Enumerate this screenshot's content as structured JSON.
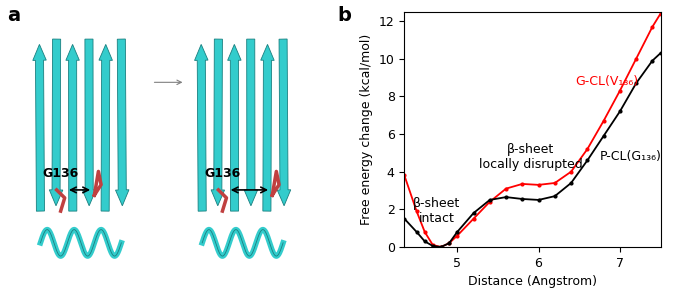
{
  "panel_labels": [
    "a",
    "b"
  ],
  "structure_panel": {
    "residue_labels": [
      "G136",
      "G136"
    ]
  },
  "chart_data": {
    "type": "line",
    "xlabel": "Distance (Angstrom)",
    "ylabel": "Free energy change (kcal/mol)",
    "xlim": [
      4.35,
      7.5
    ],
    "xticks": [
      5,
      6,
      7
    ],
    "ylim": [
      0,
      12.5
    ],
    "yticks": [
      0,
      2,
      4,
      6,
      8,
      10,
      12
    ],
    "annotations": [
      "β-sheet\nintact",
      "β-sheet\nlocally disrupted"
    ],
    "series": [
      {
        "name": "G-CL(V₁₃₆)",
        "color": "#ff0000",
        "marker": "o",
        "x": [
          4.35,
          4.5,
          4.6,
          4.7,
          4.8,
          4.9,
          5.0,
          5.2,
          5.4,
          5.6,
          5.8,
          6.0,
          6.2,
          6.4,
          6.6,
          6.8,
          7.0,
          7.2,
          7.4,
          7.5
        ],
        "values": [
          3.8,
          1.9,
          0.8,
          0.1,
          0.0,
          0.2,
          0.6,
          1.5,
          2.4,
          3.1,
          3.35,
          3.3,
          3.4,
          4.0,
          5.2,
          6.7,
          8.3,
          10.0,
          11.7,
          12.4
        ]
      },
      {
        "name": "P-CL(G₁₃₆)",
        "color": "#000000",
        "marker": "o",
        "x": [
          4.35,
          4.5,
          4.6,
          4.7,
          4.8,
          4.9,
          5.0,
          5.2,
          5.4,
          5.6,
          5.8,
          6.0,
          6.2,
          6.4,
          6.6,
          6.8,
          7.0,
          7.2,
          7.4,
          7.5
        ],
        "values": [
          1.5,
          0.8,
          0.3,
          0.05,
          0.0,
          0.2,
          0.8,
          1.8,
          2.5,
          2.65,
          2.55,
          2.5,
          2.7,
          3.4,
          4.6,
          5.9,
          7.2,
          8.7,
          9.9,
          10.3
        ]
      }
    ]
  }
}
